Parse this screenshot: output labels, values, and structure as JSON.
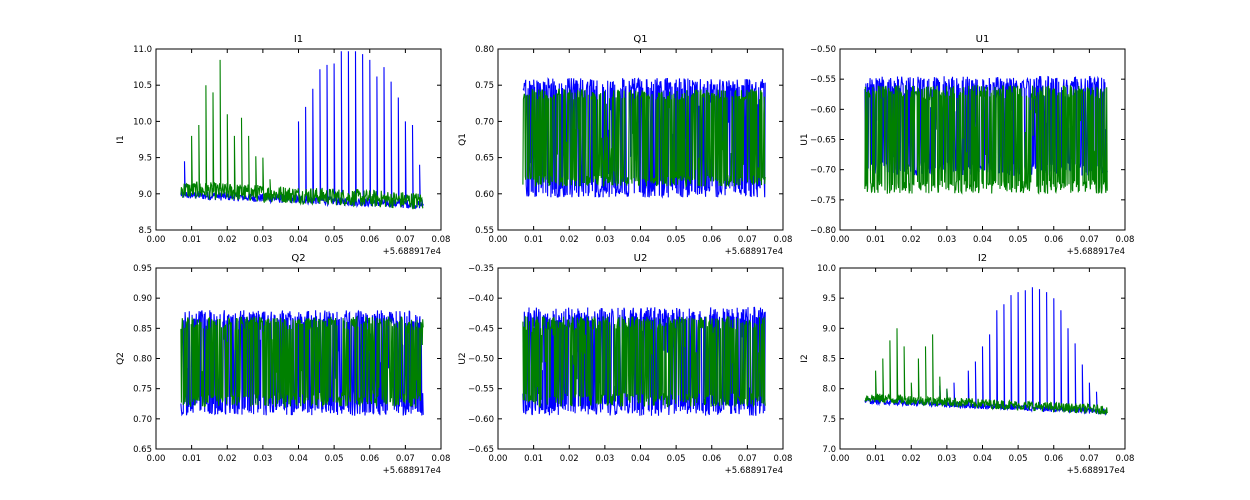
{
  "chart_data": [
    {
      "type": "line",
      "title": "I1",
      "xlabel": "",
      "ylabel": "I1",
      "xlim": [
        0.0,
        0.08
      ],
      "ylim": [
        8.5,
        11.0
      ],
      "xticks": [
        "0.00",
        "0.01",
        "0.02",
        "0.03",
        "0.04",
        "0.05",
        "0.06",
        "0.07",
        "0.08"
      ],
      "yticks": [
        "8.5",
        "9.0",
        "9.5",
        "10.0",
        "10.5",
        "11.0"
      ],
      "offset_text": "+5.688917e4",
      "series": [
        {
          "name": "blue",
          "color": "#0000ff",
          "x_range": [
            0.007,
            0.075
          ],
          "baseline": [
            8.99,
            8.85
          ],
          "spread": 0.06,
          "spikes": [
            [
              0.008,
              9.45
            ],
            [
              0.04,
              10.0
            ],
            [
              0.042,
              10.2
            ],
            [
              0.044,
              10.45
            ],
            [
              0.046,
              10.72
            ],
            [
              0.048,
              10.78
            ],
            [
              0.05,
              10.8
            ],
            [
              0.052,
              10.97
            ],
            [
              0.054,
              10.97
            ],
            [
              0.056,
              10.97
            ],
            [
              0.058,
              10.93
            ],
            [
              0.06,
              10.85
            ],
            [
              0.062,
              10.62
            ],
            [
              0.064,
              10.75
            ],
            [
              0.066,
              10.55
            ],
            [
              0.068,
              10.33
            ],
            [
              0.07,
              10.0
            ],
            [
              0.072,
              9.95
            ],
            [
              0.074,
              9.4
            ]
          ]
        },
        {
          "name": "green",
          "color": "#008000",
          "x_range": [
            0.007,
            0.075
          ],
          "baseline": [
            9.06,
            8.9
          ],
          "spread": 0.12,
          "spikes": [
            [
              0.01,
              9.8
            ],
            [
              0.012,
              9.95
            ],
            [
              0.014,
              10.5
            ],
            [
              0.016,
              10.4
            ],
            [
              0.018,
              10.85
            ],
            [
              0.02,
              10.1
            ],
            [
              0.022,
              9.8
            ],
            [
              0.024,
              10.05
            ],
            [
              0.026,
              9.8
            ],
            [
              0.028,
              9.52
            ],
            [
              0.03,
              9.5
            ],
            [
              0.032,
              9.2
            ]
          ]
        }
      ]
    },
    {
      "type": "line",
      "title": "Q1",
      "xlabel": "",
      "ylabel": "Q1",
      "xlim": [
        0.0,
        0.08
      ],
      "ylim": [
        0.55,
        0.8
      ],
      "xticks": [
        "0.00",
        "0.01",
        "0.02",
        "0.03",
        "0.04",
        "0.05",
        "0.06",
        "0.07",
        "0.08"
      ],
      "yticks": [
        "0.55",
        "0.60",
        "0.65",
        "0.70",
        "0.75",
        "0.80"
      ],
      "offset_text": "+5.688917e4",
      "series": [
        {
          "name": "blue",
          "color": "#0000ff",
          "x_range": [
            0.007,
            0.075
          ],
          "band": [
            0.595,
            0.76
          ],
          "spread": 0.012
        },
        {
          "name": "green",
          "color": "#008000",
          "x_range": [
            0.007,
            0.075
          ],
          "band": [
            0.61,
            0.745
          ],
          "spread": 0.01
        }
      ]
    },
    {
      "type": "line",
      "title": "U1",
      "xlabel": "",
      "ylabel": "U1",
      "xlim": [
        0.0,
        0.08
      ],
      "ylim": [
        -0.8,
        -0.5
      ],
      "xticks": [
        "0.00",
        "0.01",
        "0.02",
        "0.03",
        "0.04",
        "0.05",
        "0.06",
        "0.07",
        "0.08"
      ],
      "yticks": [
        "−0.80",
        "−0.75",
        "−0.70",
        "−0.65",
        "−0.60",
        "−0.55",
        "−0.50"
      ],
      "offset_text": "+5.688917e4",
      "series": [
        {
          "name": "blue",
          "color": "#0000ff",
          "x_range": [
            0.007,
            0.075
          ],
          "band": [
            -0.71,
            -0.545
          ],
          "spread": 0.015
        },
        {
          "name": "green",
          "color": "#008000",
          "x_range": [
            0.007,
            0.075
          ],
          "band": [
            -0.74,
            -0.56
          ],
          "spread": 0.015
        }
      ]
    },
    {
      "type": "line",
      "title": "Q2",
      "xlabel": "",
      "ylabel": "Q2",
      "xlim": [
        0.0,
        0.08
      ],
      "ylim": [
        0.65,
        0.95
      ],
      "xticks": [
        "0.00",
        "0.01",
        "0.02",
        "0.03",
        "0.04",
        "0.05",
        "0.06",
        "0.07",
        "0.08"
      ],
      "yticks": [
        "0.65",
        "0.70",
        "0.75",
        "0.80",
        "0.85",
        "0.90",
        "0.95"
      ],
      "offset_text": "+5.688917e4",
      "series": [
        {
          "name": "blue",
          "color": "#0000ff",
          "x_range": [
            0.007,
            0.075
          ],
          "band": [
            0.705,
            0.88
          ],
          "spread": 0.015
        },
        {
          "name": "green",
          "color": "#008000",
          "x_range": [
            0.007,
            0.075
          ],
          "band": [
            0.72,
            0.87
          ],
          "spread": 0.015
        }
      ]
    },
    {
      "type": "line",
      "title": "U2",
      "xlabel": "",
      "ylabel": "U2",
      "xlim": [
        0.0,
        0.08
      ],
      "ylim": [
        -0.65,
        -0.35
      ],
      "xticks": [
        "0.00",
        "0.01",
        "0.02",
        "0.03",
        "0.04",
        "0.05",
        "0.06",
        "0.07",
        "0.08"
      ],
      "yticks": [
        "−0.65",
        "−0.60",
        "−0.55",
        "−0.50",
        "−0.45",
        "−0.40",
        "−0.35"
      ],
      "offset_text": "+5.688917e4",
      "series": [
        {
          "name": "blue",
          "color": "#0000ff",
          "x_range": [
            0.007,
            0.075
          ],
          "band": [
            -0.595,
            -0.415
          ],
          "spread": 0.015
        },
        {
          "name": "green",
          "color": "#008000",
          "x_range": [
            0.007,
            0.075
          ],
          "band": [
            -0.58,
            -0.43
          ],
          "spread": 0.015
        }
      ]
    },
    {
      "type": "line",
      "title": "I2",
      "xlabel": "",
      "ylabel": "I2",
      "xlim": [
        0.0,
        0.08
      ],
      "ylim": [
        7.0,
        10.0
      ],
      "xticks": [
        "0.00",
        "0.01",
        "0.02",
        "0.03",
        "0.04",
        "0.05",
        "0.06",
        "0.07",
        "0.08"
      ],
      "yticks": [
        "7.0",
        "7.5",
        "8.0",
        "8.5",
        "9.0",
        "9.5",
        "10.0"
      ],
      "offset_text": "+5.688917e4",
      "series": [
        {
          "name": "blue",
          "color": "#0000ff",
          "x_range": [
            0.007,
            0.075
          ],
          "baseline": [
            7.8,
            7.62
          ],
          "spread": 0.05,
          "spikes": [
            [
              0.028,
              8.05
            ],
            [
              0.03,
              8.0
            ],
            [
              0.032,
              8.1
            ],
            [
              0.036,
              8.3
            ],
            [
              0.038,
              8.45
            ],
            [
              0.04,
              8.7
            ],
            [
              0.042,
              8.9
            ],
            [
              0.044,
              9.3
            ],
            [
              0.046,
              9.4
            ],
            [
              0.048,
              9.55
            ],
            [
              0.05,
              9.6
            ],
            [
              0.052,
              9.63
            ],
            [
              0.054,
              9.68
            ],
            [
              0.056,
              9.65
            ],
            [
              0.058,
              9.6
            ],
            [
              0.06,
              9.5
            ],
            [
              0.062,
              9.3
            ],
            [
              0.064,
              9.0
            ],
            [
              0.066,
              8.75
            ],
            [
              0.068,
              8.4
            ],
            [
              0.07,
              8.1
            ],
            [
              0.072,
              7.95
            ]
          ]
        },
        {
          "name": "green",
          "color": "#008000",
          "x_range": [
            0.007,
            0.075
          ],
          "baseline": [
            7.85,
            7.65
          ],
          "spread": 0.08,
          "spikes": [
            [
              0.01,
              8.3
            ],
            [
              0.012,
              8.5
            ],
            [
              0.014,
              8.8
            ],
            [
              0.016,
              9.0
            ],
            [
              0.018,
              8.7
            ],
            [
              0.02,
              8.1
            ],
            [
              0.022,
              8.5
            ],
            [
              0.024,
              8.7
            ],
            [
              0.026,
              8.9
            ],
            [
              0.028,
              8.2
            ],
            [
              0.03,
              8.0
            ]
          ]
        }
      ]
    }
  ]
}
